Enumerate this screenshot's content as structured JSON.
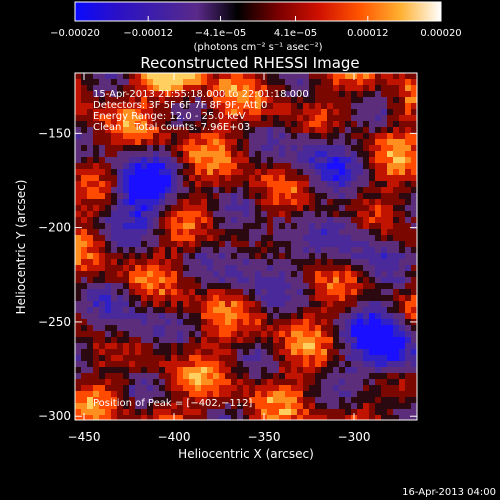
{
  "chart_data": {
    "type": "heatmap",
    "title": "Reconstructed RHESSI Image",
    "xlabel": "Heliocentric X (arcsec)",
    "ylabel": "Heliocentric Y (arcsec)",
    "xlim": [
      -455,
      -265
    ],
    "ylim": [
      -302,
      -118
    ],
    "x_ticks": [
      -450,
      -400,
      -350,
      -300
    ],
    "y_ticks": [
      -150,
      -200,
      -250,
      -300
    ],
    "x_tick_labels": [
      "−450",
      "−400",
      "−350",
      "−300"
    ],
    "y_tick_labels": [
      "−150",
      "−200",
      "−250",
      "−300"
    ],
    "colorbar": {
      "range": [
        -0.0002,
        0.0002
      ],
      "ticks": [
        -0.0002,
        -0.00012,
        -4.1e-05,
        4.1e-05,
        0.00012,
        0.0002
      ],
      "tick_labels": [
        "−0.00020",
        "−0.00012",
        "−4.1e−05",
        "4.1e−05",
        "0.00012",
        "0.00020"
      ],
      "unit_label": "(photons cm⁻² s⁻¹ asec⁻²)",
      "colors": [
        "#0a0aff",
        "#2a10c8",
        "#3f1fa8",
        "#5a2a8a",
        "#000000",
        "#7a0000",
        "#d01000",
        "#ff5500",
        "#ffb030",
        "#ffffff"
      ]
    },
    "annotations": [
      "15-Apr-2013 21:55:18.000 to 22:01:18.000",
      "Detectors: 3F 5F 6F 7F 8F 9F, Att 0",
      "Energy Range: 12.0 - 25.0 keV",
      "Clean    Total counts: 7.96E+03"
    ],
    "peak_label": "Position of Peak = [−402,−112]",
    "peak": [
      -402,
      -112
    ],
    "negative_regions": [
      {
        "x": -420,
        "y": -180,
        "strength": 0.9
      },
      {
        "x": -285,
        "y": -262,
        "strength": 1.0
      },
      {
        "x": -355,
        "y": -215,
        "strength": 0.6
      },
      {
        "x": -320,
        "y": -160,
        "strength": 0.6
      },
      {
        "x": -430,
        "y": -250,
        "strength": 0.5
      },
      {
        "x": -300,
        "y": -205,
        "strength": 0.5
      }
    ]
  },
  "footer": {
    "timestamp": "16-Apr-2013 04:00"
  }
}
